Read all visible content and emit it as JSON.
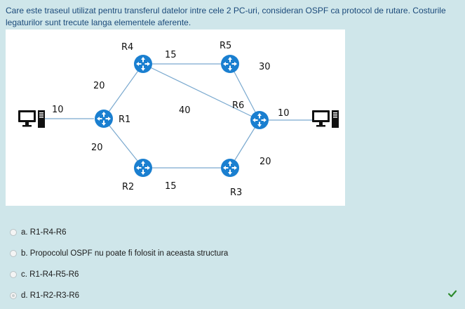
{
  "question": {
    "text": "Care este traseul utilizat pentru transferul datelor intre cele 2 PC-uri, consideran OSPF ca protocol de rutare. Costurile legaturilor sunt trecute langa elementele aferente."
  },
  "diagram": {
    "router_labels": {
      "R1": "R1",
      "R2": "R2",
      "R3": "R3",
      "R4": "R4",
      "R5": "R5",
      "R6": "R6"
    },
    "link_costs": {
      "pc1_r1": "10",
      "r1_r4": "20",
      "r1_r2": "20",
      "r4_r5": "15",
      "r4_r6": "40",
      "r5_r6": "30",
      "r2_r3": "15",
      "r3_r6": "20",
      "r6_pc2": "10"
    },
    "colors": {
      "router": "#1a7fd0",
      "link": "#7aa9cf",
      "pc": "#111111"
    }
  },
  "options": [
    {
      "label": "a. R1-R4-R6",
      "selected": false,
      "correct": false
    },
    {
      "label": "b. Propocolul OSPF nu poate fi folosit in aceasta structura",
      "selected": false,
      "correct": false
    },
    {
      "label": "c. R1-R4-R5-R6",
      "selected": false,
      "correct": false
    },
    {
      "label": "d. R1-R2-R3-R6",
      "selected": true,
      "correct": true
    }
  ],
  "icons": {
    "correct": "check-icon",
    "router": "router-icon",
    "computer": "computer-icon"
  }
}
